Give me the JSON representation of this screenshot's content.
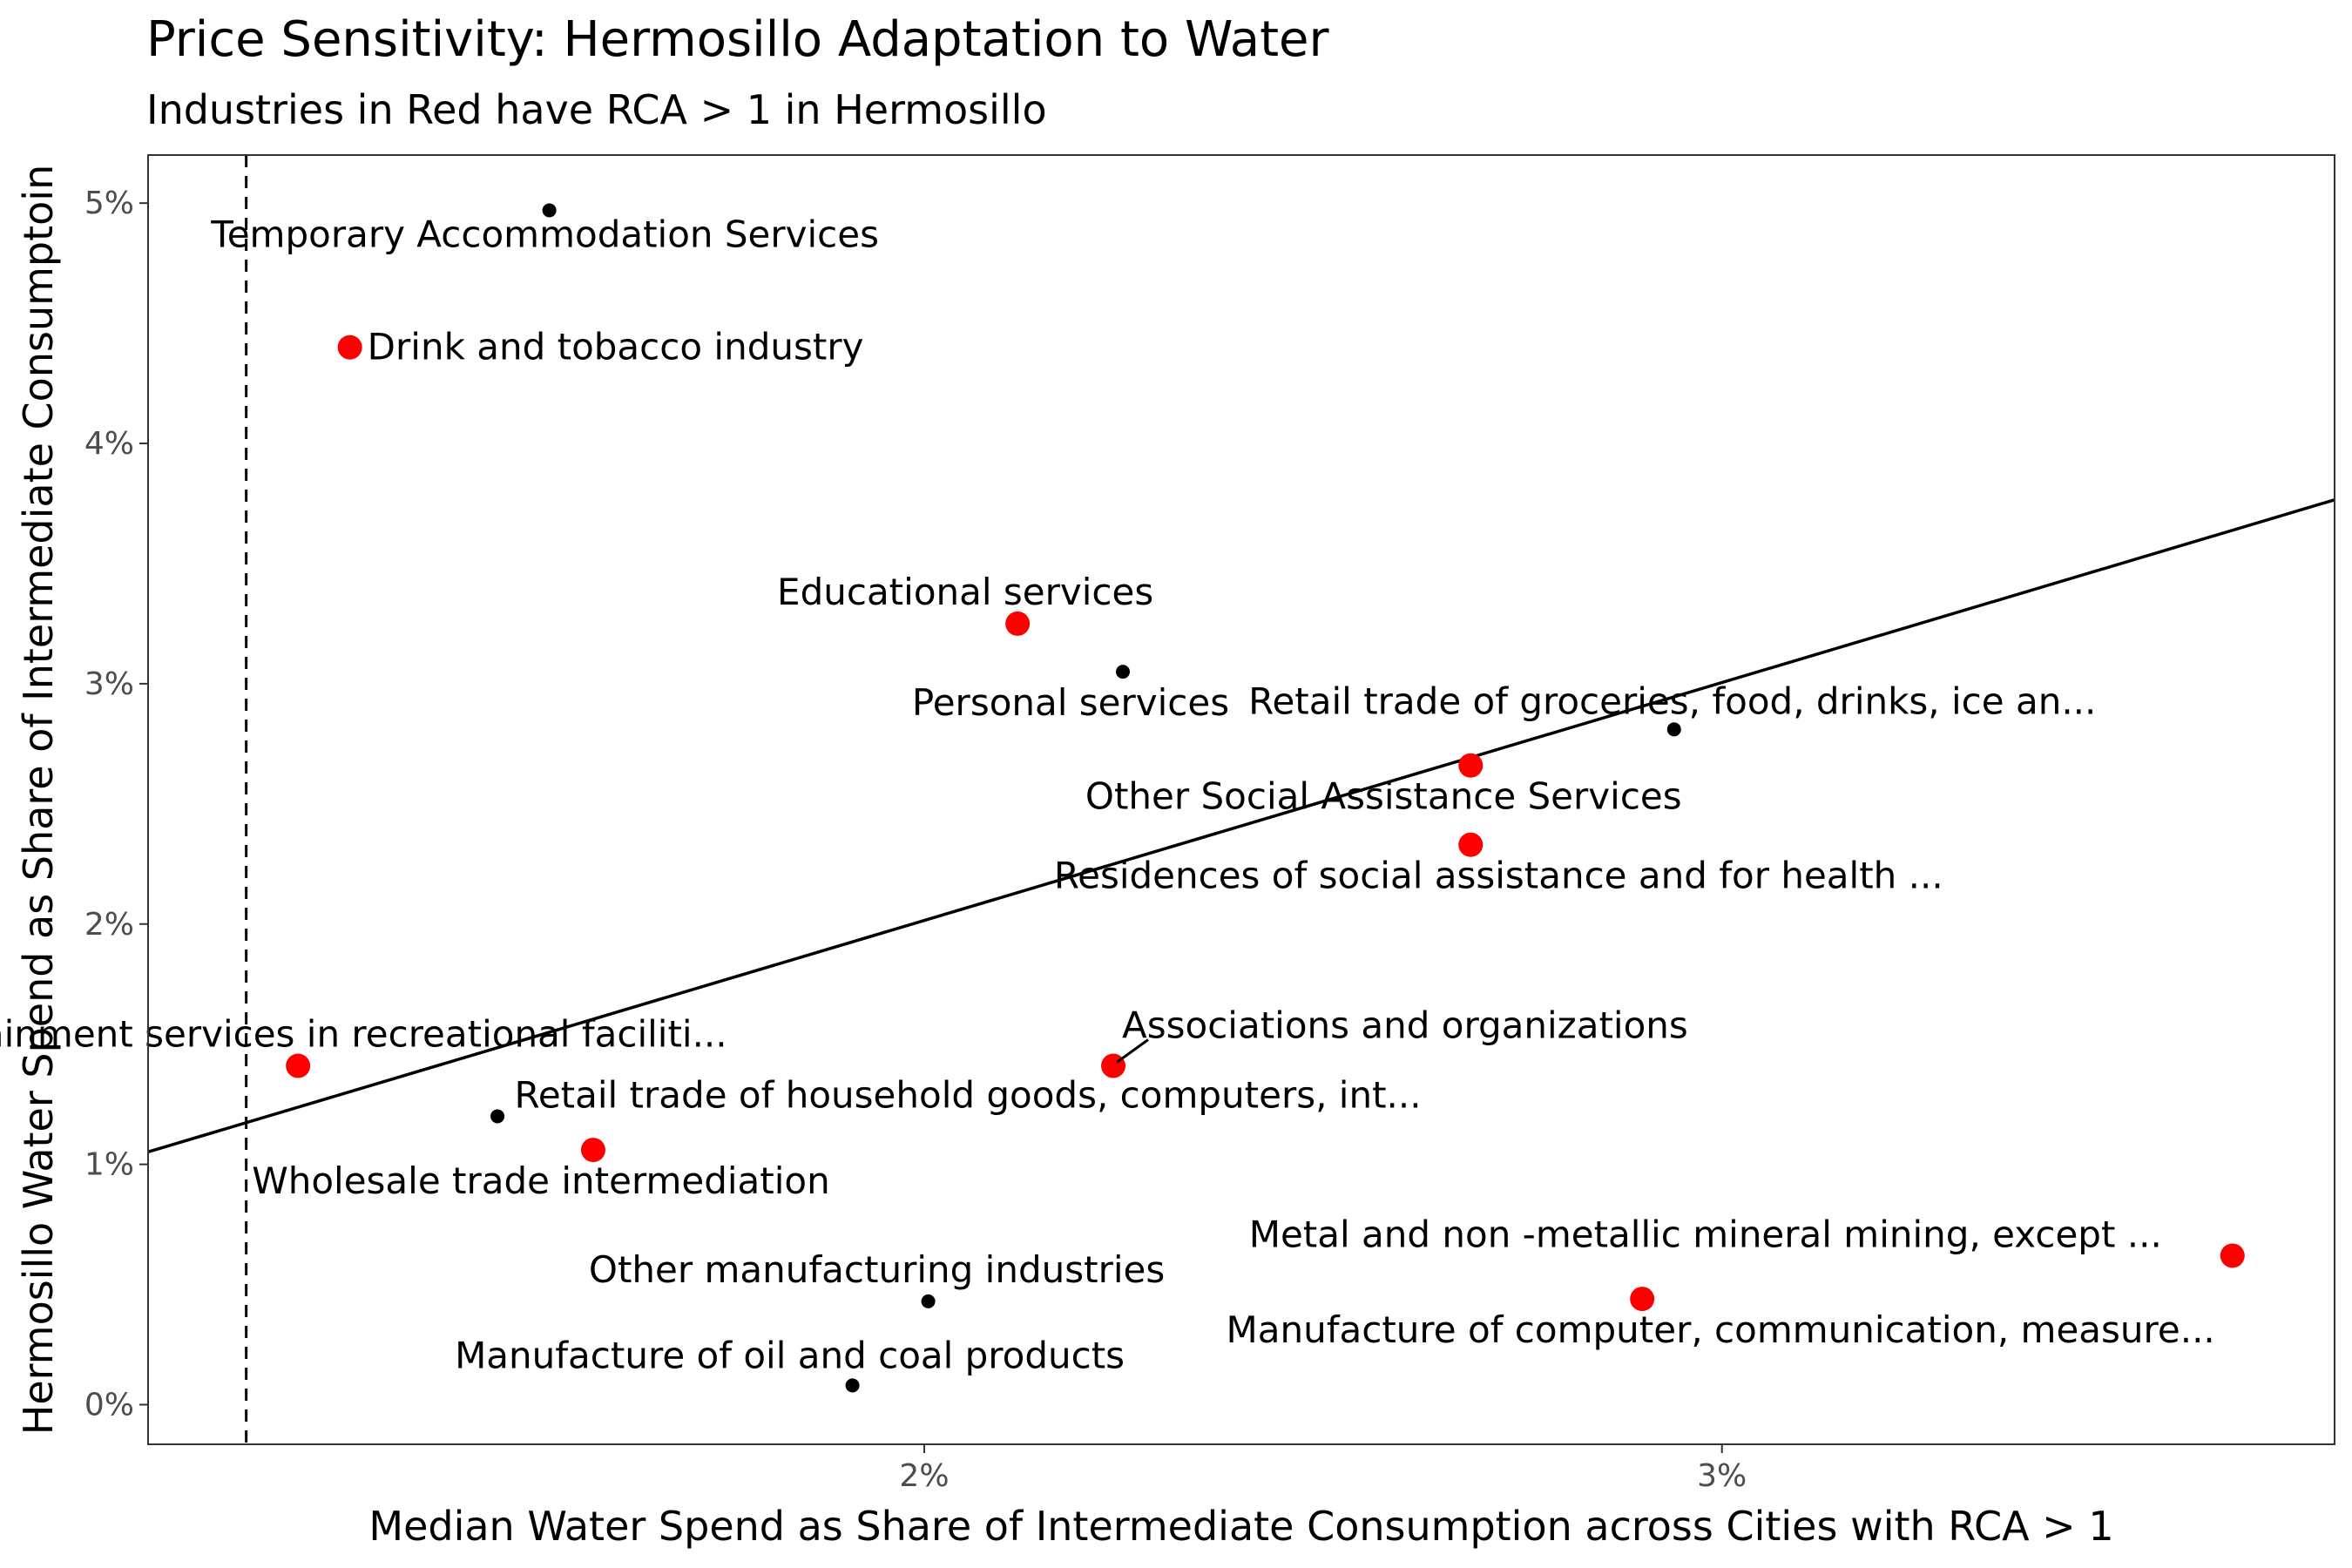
{
  "chart_data": {
    "type": "scatter",
    "title": "Price Sensitivity: Hermosillo Adaptation to Water",
    "subtitle": "Industries in Red have RCA > 1 in Hermosillo",
    "xlabel": "Median Water Spend as Share of Intermediate Consumption across Cities with RCA > 1",
    "ylabel": "Hermosillo Water Spend as Share of Intermediate Consumptoin",
    "xlim": [
      1.027,
      3.768
    ],
    "ylim": [
      -0.165,
      5.2
    ],
    "x_ticks": [
      {
        "value": 2,
        "label": "2%"
      },
      {
        "value": 3,
        "label": "3%"
      }
    ],
    "y_ticks": [
      {
        "value": 0,
        "label": "0%"
      },
      {
        "value": 1,
        "label": "1%"
      },
      {
        "value": 2,
        "label": "2%"
      },
      {
        "value": 3,
        "label": "3%"
      },
      {
        "value": 4,
        "label": "4%"
      },
      {
        "value": 5,
        "label": "5%"
      }
    ],
    "grid": false,
    "legend": "none",
    "reference_vline": {
      "x": 1.15,
      "style": "dashed"
    },
    "fit_line": {
      "intercept": 0.035,
      "slope": 0.99
    },
    "colors": {
      "rca_above_1": "#ff0000",
      "rca_below_1": "#000000"
    },
    "points": [
      {
        "label": "Temporary Accommodation Services",
        "x": 1.53,
        "y": 4.97,
        "rca_gt_1": false
      },
      {
        "label": "Drink and tobacco industry",
        "x": 1.28,
        "y": 4.4,
        "rca_gt_1": true
      },
      {
        "label": "Educational services",
        "x": 2.117,
        "y": 3.25,
        "rca_gt_1": true
      },
      {
        "label": "Personal services",
        "x": 2.249,
        "y": 3.05,
        "rca_gt_1": false
      },
      {
        "label": "Retail trade of groceries, food, drinks, ice an...",
        "x": 2.94,
        "y": 2.81,
        "rca_gt_1": false
      },
      {
        "label": "Other Social Assistance Services",
        "x": 2.685,
        "y": 2.66,
        "rca_gt_1": true
      },
      {
        "label": "Residences of social assistance and for health ...",
        "x": 2.685,
        "y": 2.33,
        "rca_gt_1": true
      },
      {
        "label": "Entertainment services in recreational faciliti...",
        "x": 1.215,
        "y": 1.41,
        "rca_gt_1": true
      },
      {
        "label": "Associations and organizations",
        "x": 2.237,
        "y": 1.41,
        "rca_gt_1": true
      },
      {
        "label": "Retail trade of household goods, computers, int...",
        "x": 1.465,
        "y": 1.2,
        "rca_gt_1": false
      },
      {
        "label": "Wholesale trade intermediation",
        "x": 1.585,
        "y": 1.06,
        "rca_gt_1": true
      },
      {
        "label": "Metal and non -metallic mineral mining, except ...",
        "x": 3.64,
        "y": 0.62,
        "rca_gt_1": true
      },
      {
        "label": "Manufacture of computer, communication, measure...",
        "x": 2.9,
        "y": 0.44,
        "rca_gt_1": true
      },
      {
        "label": "Other manufacturing industries",
        "x": 2.005,
        "y": 0.43,
        "rca_gt_1": false
      },
      {
        "label": "Manufacture of oil and coal products",
        "x": 1.91,
        "y": 0.08,
        "rca_gt_1": false
      }
    ]
  }
}
